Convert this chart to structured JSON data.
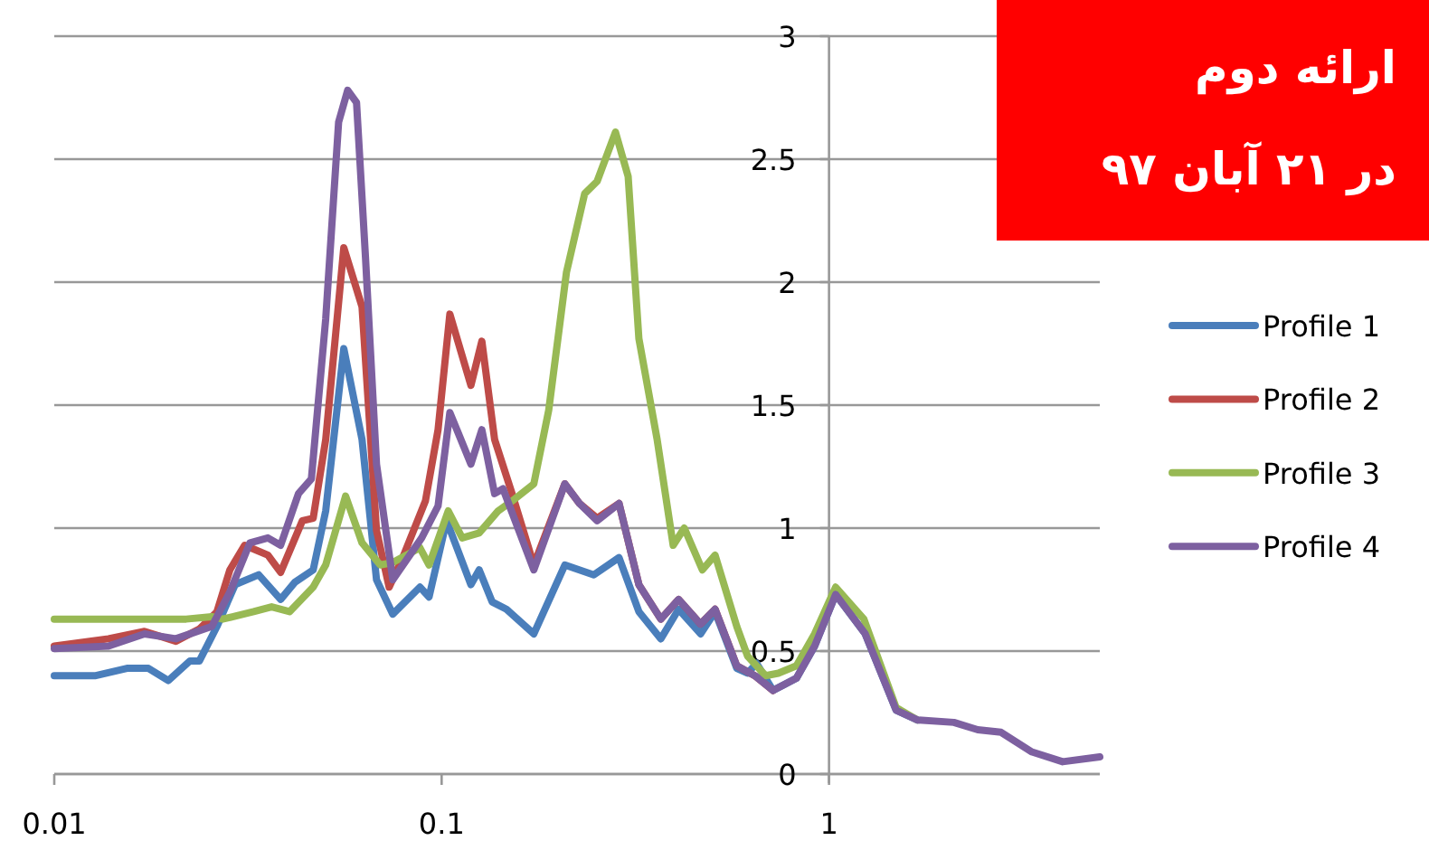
{
  "chart_data": {
    "type": "line",
    "annotations": [
      "ارائه دوم",
      "در ۲۱ آبان ۹۷"
    ],
    "log": "x",
    "xlim": [
      0.01,
      5
    ],
    "xticks": [
      0.01,
      0.1,
      1
    ],
    "ylim": [
      0,
      3
    ],
    "yticks": [
      0,
      0.5,
      1,
      1.5,
      2,
      2.5,
      3
    ],
    "grid": "y",
    "legend": "right",
    "marker": "none",
    "line_style": "solid",
    "series": [
      {
        "name": "Profile 1",
        "color": "#4a7ebb",
        "x": [
          0.01,
          0.0128,
          0.0154,
          0.0175,
          0.0197,
          0.0224,
          0.0237,
          0.0263,
          0.0293,
          0.0337,
          0.0384,
          0.0418,
          0.0466,
          0.0502,
          0.0559,
          0.0623,
          0.0679,
          0.0748,
          0.0879,
          0.0928,
          0.103,
          0.119,
          0.125,
          0.135,
          0.147,
          0.173,
          0.208,
          0.247,
          0.287,
          0.323,
          0.368,
          0.409,
          0.466,
          0.508,
          0.578,
          0.616,
          0.65,
          0.717,
          0.824,
          0.918,
          1.04,
          1.24,
          1.49,
          1.69
        ],
        "values": [
          0.4,
          0.4,
          0.43,
          0.43,
          0.38,
          0.46,
          0.46,
          0.6,
          0.77,
          0.81,
          0.71,
          0.78,
          0.83,
          1.07,
          1.73,
          1.36,
          0.79,
          0.65,
          0.76,
          0.72,
          1.03,
          0.77,
          0.83,
          0.7,
          0.67,
          0.57,
          0.85,
          0.81,
          0.88,
          0.66,
          0.55,
          0.67,
          0.57,
          0.66,
          0.43,
          0.41,
          0.45,
          0.34,
          0.39,
          0.52,
          0.73,
          0.57,
          0.26,
          0.22
        ]
      },
      {
        "name": "Profile 2",
        "color": "#be4b48",
        "x": [
          0.01,
          0.0138,
          0.0171,
          0.0206,
          0.0237,
          0.0263,
          0.0284,
          0.031,
          0.0356,
          0.0384,
          0.0437,
          0.0466,
          0.0502,
          0.0559,
          0.0623,
          0.0679,
          0.0732,
          0.0798,
          0.0908,
          0.0979,
          0.105,
          0.119,
          0.127,
          0.137,
          0.152,
          0.173,
          0.208,
          0.227,
          0.252,
          0.287,
          0.323,
          0.368,
          0.409,
          0.466,
          0.508,
          0.578,
          0.643,
          0.717
        ],
        "values": [
          0.52,
          0.55,
          0.58,
          0.54,
          0.59,
          0.66,
          0.83,
          0.93,
          0.89,
          0.82,
          1.03,
          1.04,
          1.36,
          2.14,
          1.9,
          0.99,
          0.76,
          0.89,
          1.11,
          1.4,
          1.87,
          1.58,
          1.76,
          1.36,
          1.14,
          0.85,
          1.18,
          1.1,
          1.04,
          1.1,
          0.77,
          0.63,
          0.71,
          0.61,
          0.67,
          0.44,
          0.4,
          0.34
        ]
      },
      {
        "name": "Profile 3",
        "color": "#98b954",
        "x": [
          0.01,
          0.0219,
          0.0255,
          0.0272,
          0.0327,
          0.0364,
          0.0405,
          0.0466,
          0.0502,
          0.0565,
          0.0623,
          0.0694,
          0.0748,
          0.0879,
          0.0928,
          0.104,
          0.113,
          0.125,
          0.14,
          0.152,
          0.173,
          0.189,
          0.21,
          0.234,
          0.252,
          0.281,
          0.303,
          0.323,
          0.36,
          0.396,
          0.423,
          0.471,
          0.508,
          0.578,
          0.616,
          0.686,
          0.74,
          0.824,
          0.918,
          1.04,
          1.23,
          1.49,
          1.69
        ],
        "values": [
          0.63,
          0.63,
          0.64,
          0.63,
          0.66,
          0.68,
          0.66,
          0.76,
          0.85,
          1.13,
          0.94,
          0.85,
          0.86,
          0.92,
          0.85,
          1.07,
          0.96,
          0.98,
          1.07,
          1.11,
          1.18,
          1.48,
          2.04,
          2.36,
          2.41,
          2.61,
          2.43,
          1.77,
          1.36,
          0.93,
          1.0,
          0.83,
          0.89,
          0.6,
          0.48,
          0.4,
          0.41,
          0.44,
          0.57,
          0.76,
          0.63,
          0.27,
          0.22
        ]
      },
      {
        "name": "Profile 4",
        "color": "#7d60a0",
        "x": [
          0.01,
          0.0138,
          0.0171,
          0.0206,
          0.0255,
          0.0284,
          0.032,
          0.0356,
          0.0384,
          0.0427,
          0.0461,
          0.0502,
          0.0542,
          0.0572,
          0.0603,
          0.0636,
          0.0679,
          0.0748,
          0.0888,
          0.0979,
          0.105,
          0.119,
          0.127,
          0.137,
          0.144,
          0.173,
          0.208,
          0.227,
          0.252,
          0.287,
          0.323,
          0.368,
          0.409,
          0.466,
          0.508,
          0.578,
          0.643,
          0.717,
          0.824,
          0.918,
          1.04,
          1.24,
          1.49,
          1.69,
          2.1,
          2.42,
          2.78,
          3.34,
          4.01,
          5
        ],
        "values": [
          0.51,
          0.52,
          0.57,
          0.55,
          0.6,
          0.74,
          0.94,
          0.96,
          0.93,
          1.14,
          1.2,
          1.85,
          2.65,
          2.78,
          2.73,
          2.1,
          1.26,
          0.79,
          0.96,
          1.09,
          1.47,
          1.26,
          1.4,
          1.14,
          1.16,
          0.83,
          1.18,
          1.1,
          1.03,
          1.1,
          0.77,
          0.63,
          0.71,
          0.61,
          0.67,
          0.44,
          0.4,
          0.34,
          0.39,
          0.52,
          0.73,
          0.57,
          0.26,
          0.22,
          0.21,
          0.18,
          0.17,
          0.09,
          0.05,
          0.07
        ]
      }
    ]
  }
}
